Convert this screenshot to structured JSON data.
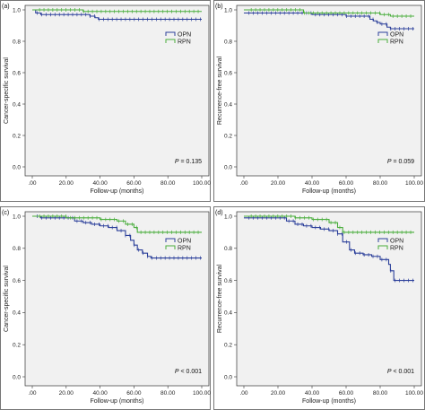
{
  "colors": {
    "OPN": "#2b3f9a",
    "RPN": "#49ad3c",
    "plot_bg": "#f1f1f1"
  },
  "chart_data": [
    {
      "type": "line",
      "panel": "(a)",
      "ylabel": "Cancer-specific survival",
      "xlabel": "Follow-up (months)",
      "xlim": [
        0,
        100
      ],
      "ylim": [
        0,
        1.0
      ],
      "xticks": [
        ".00",
        "20.00",
        "40.00",
        "60.00",
        "80.00",
        "100.00"
      ],
      "yticks": [
        "0.0",
        "0.2",
        "0.4",
        "0.6",
        "0.8",
        "1.0"
      ],
      "pvalue_prefix": "P",
      "pvalue_text": " = 0.135",
      "legend": "top-right",
      "series": [
        {
          "name": "OPN",
          "x": [
            0,
            2,
            5,
            20,
            30,
            34,
            37,
            39,
            100
          ],
          "y": [
            1.0,
            0.98,
            0.97,
            0.97,
            0.97,
            0.96,
            0.95,
            0.94,
            0.94
          ]
        },
        {
          "name": "RPN",
          "x": [
            0,
            5,
            30,
            100
          ],
          "y": [
            1.0,
            1.0,
            0.99,
            0.99
          ]
        }
      ]
    },
    {
      "type": "line",
      "panel": "(b)",
      "ylabel": "Recurrence-free survival",
      "xlabel": "Follow-up (months)",
      "xlim": [
        0,
        100
      ],
      "ylim": [
        0,
        1.0
      ],
      "xticks": [
        ".00",
        "20.00",
        "40.00",
        "60.00",
        "80.00",
        "100.00"
      ],
      "yticks": [
        "0.0",
        "0.2",
        "0.4",
        "0.6",
        "0.8",
        "1.0"
      ],
      "pvalue_prefix": "P",
      "pvalue_text": " = 0.059",
      "legend": "top-right",
      "series": [
        {
          "name": "OPN",
          "x": [
            0,
            20,
            40,
            60,
            70,
            74,
            76,
            78,
            80,
            84,
            86,
            100
          ],
          "y": [
            0.98,
            0.98,
            0.97,
            0.96,
            0.96,
            0.94,
            0.93,
            0.92,
            0.91,
            0.89,
            0.88,
            0.88
          ]
        },
        {
          "name": "RPN",
          "x": [
            0,
            20,
            35,
            60,
            80,
            86,
            100
          ],
          "y": [
            1.0,
            1.0,
            0.98,
            0.98,
            0.97,
            0.96,
            0.96
          ]
        }
      ]
    },
    {
      "type": "line",
      "panel": "(c)",
      "ylabel": "Cancer-specific survival",
      "xlabel": "Follow-up (months)",
      "xlim": [
        0,
        100
      ],
      "ylim": [
        0,
        1.0
      ],
      "xticks": [
        ".00",
        "20.00",
        "40.00",
        "60.00",
        "80.00",
        "100.00"
      ],
      "yticks": [
        "0.0",
        "0.2",
        "0.4",
        "0.6",
        "0.8",
        "1.0"
      ],
      "pvalue_prefix": "P",
      "pvalue_text": " < 0.001",
      "legend": "top-right",
      "series": [
        {
          "name": "OPN",
          "x": [
            0,
            5,
            20,
            25,
            30,
            35,
            40,
            45,
            50,
            55,
            58,
            60,
            62,
            65,
            68,
            70,
            100
          ],
          "y": [
            1.0,
            0.99,
            0.99,
            0.97,
            0.96,
            0.95,
            0.94,
            0.93,
            0.91,
            0.88,
            0.85,
            0.82,
            0.79,
            0.77,
            0.75,
            0.74,
            0.74
          ]
        },
        {
          "name": "RPN",
          "x": [
            0,
            5,
            20,
            30,
            40,
            50,
            55,
            60,
            62,
            100
          ],
          "y": [
            1.0,
            1.0,
            0.99,
            0.99,
            0.98,
            0.97,
            0.95,
            0.93,
            0.9,
            0.9
          ]
        }
      ]
    },
    {
      "type": "line",
      "panel": "(d)",
      "ylabel": "Recurrence-free survival",
      "xlabel": "Follow-up (months)",
      "xlim": [
        0,
        100
      ],
      "ylim": [
        0,
        1.0
      ],
      "xticks": [
        ".00",
        "20.00",
        "40.00",
        "60.00",
        "80.00",
        "100.00"
      ],
      "yticks": [
        "0.0",
        "0.2",
        "0.4",
        "0.6",
        "0.8",
        "1.0"
      ],
      "pvalue_prefix": "P",
      "pvalue_text": " < 0.001",
      "legend": "top-right",
      "series": [
        {
          "name": "OPN",
          "x": [
            0,
            20,
            25,
            30,
            35,
            40,
            45,
            50,
            55,
            58,
            62,
            65,
            70,
            75,
            80,
            85,
            86,
            88,
            100
          ],
          "y": [
            0.99,
            0.99,
            0.97,
            0.95,
            0.94,
            0.93,
            0.92,
            0.91,
            0.89,
            0.84,
            0.79,
            0.77,
            0.76,
            0.75,
            0.73,
            0.7,
            0.66,
            0.6,
            0.6
          ]
        },
        {
          "name": "RPN",
          "x": [
            0,
            20,
            30,
            40,
            50,
            55,
            58,
            100
          ],
          "y": [
            1.0,
            1.0,
            0.99,
            0.98,
            0.96,
            0.93,
            0.9,
            0.9
          ]
        }
      ]
    }
  ]
}
